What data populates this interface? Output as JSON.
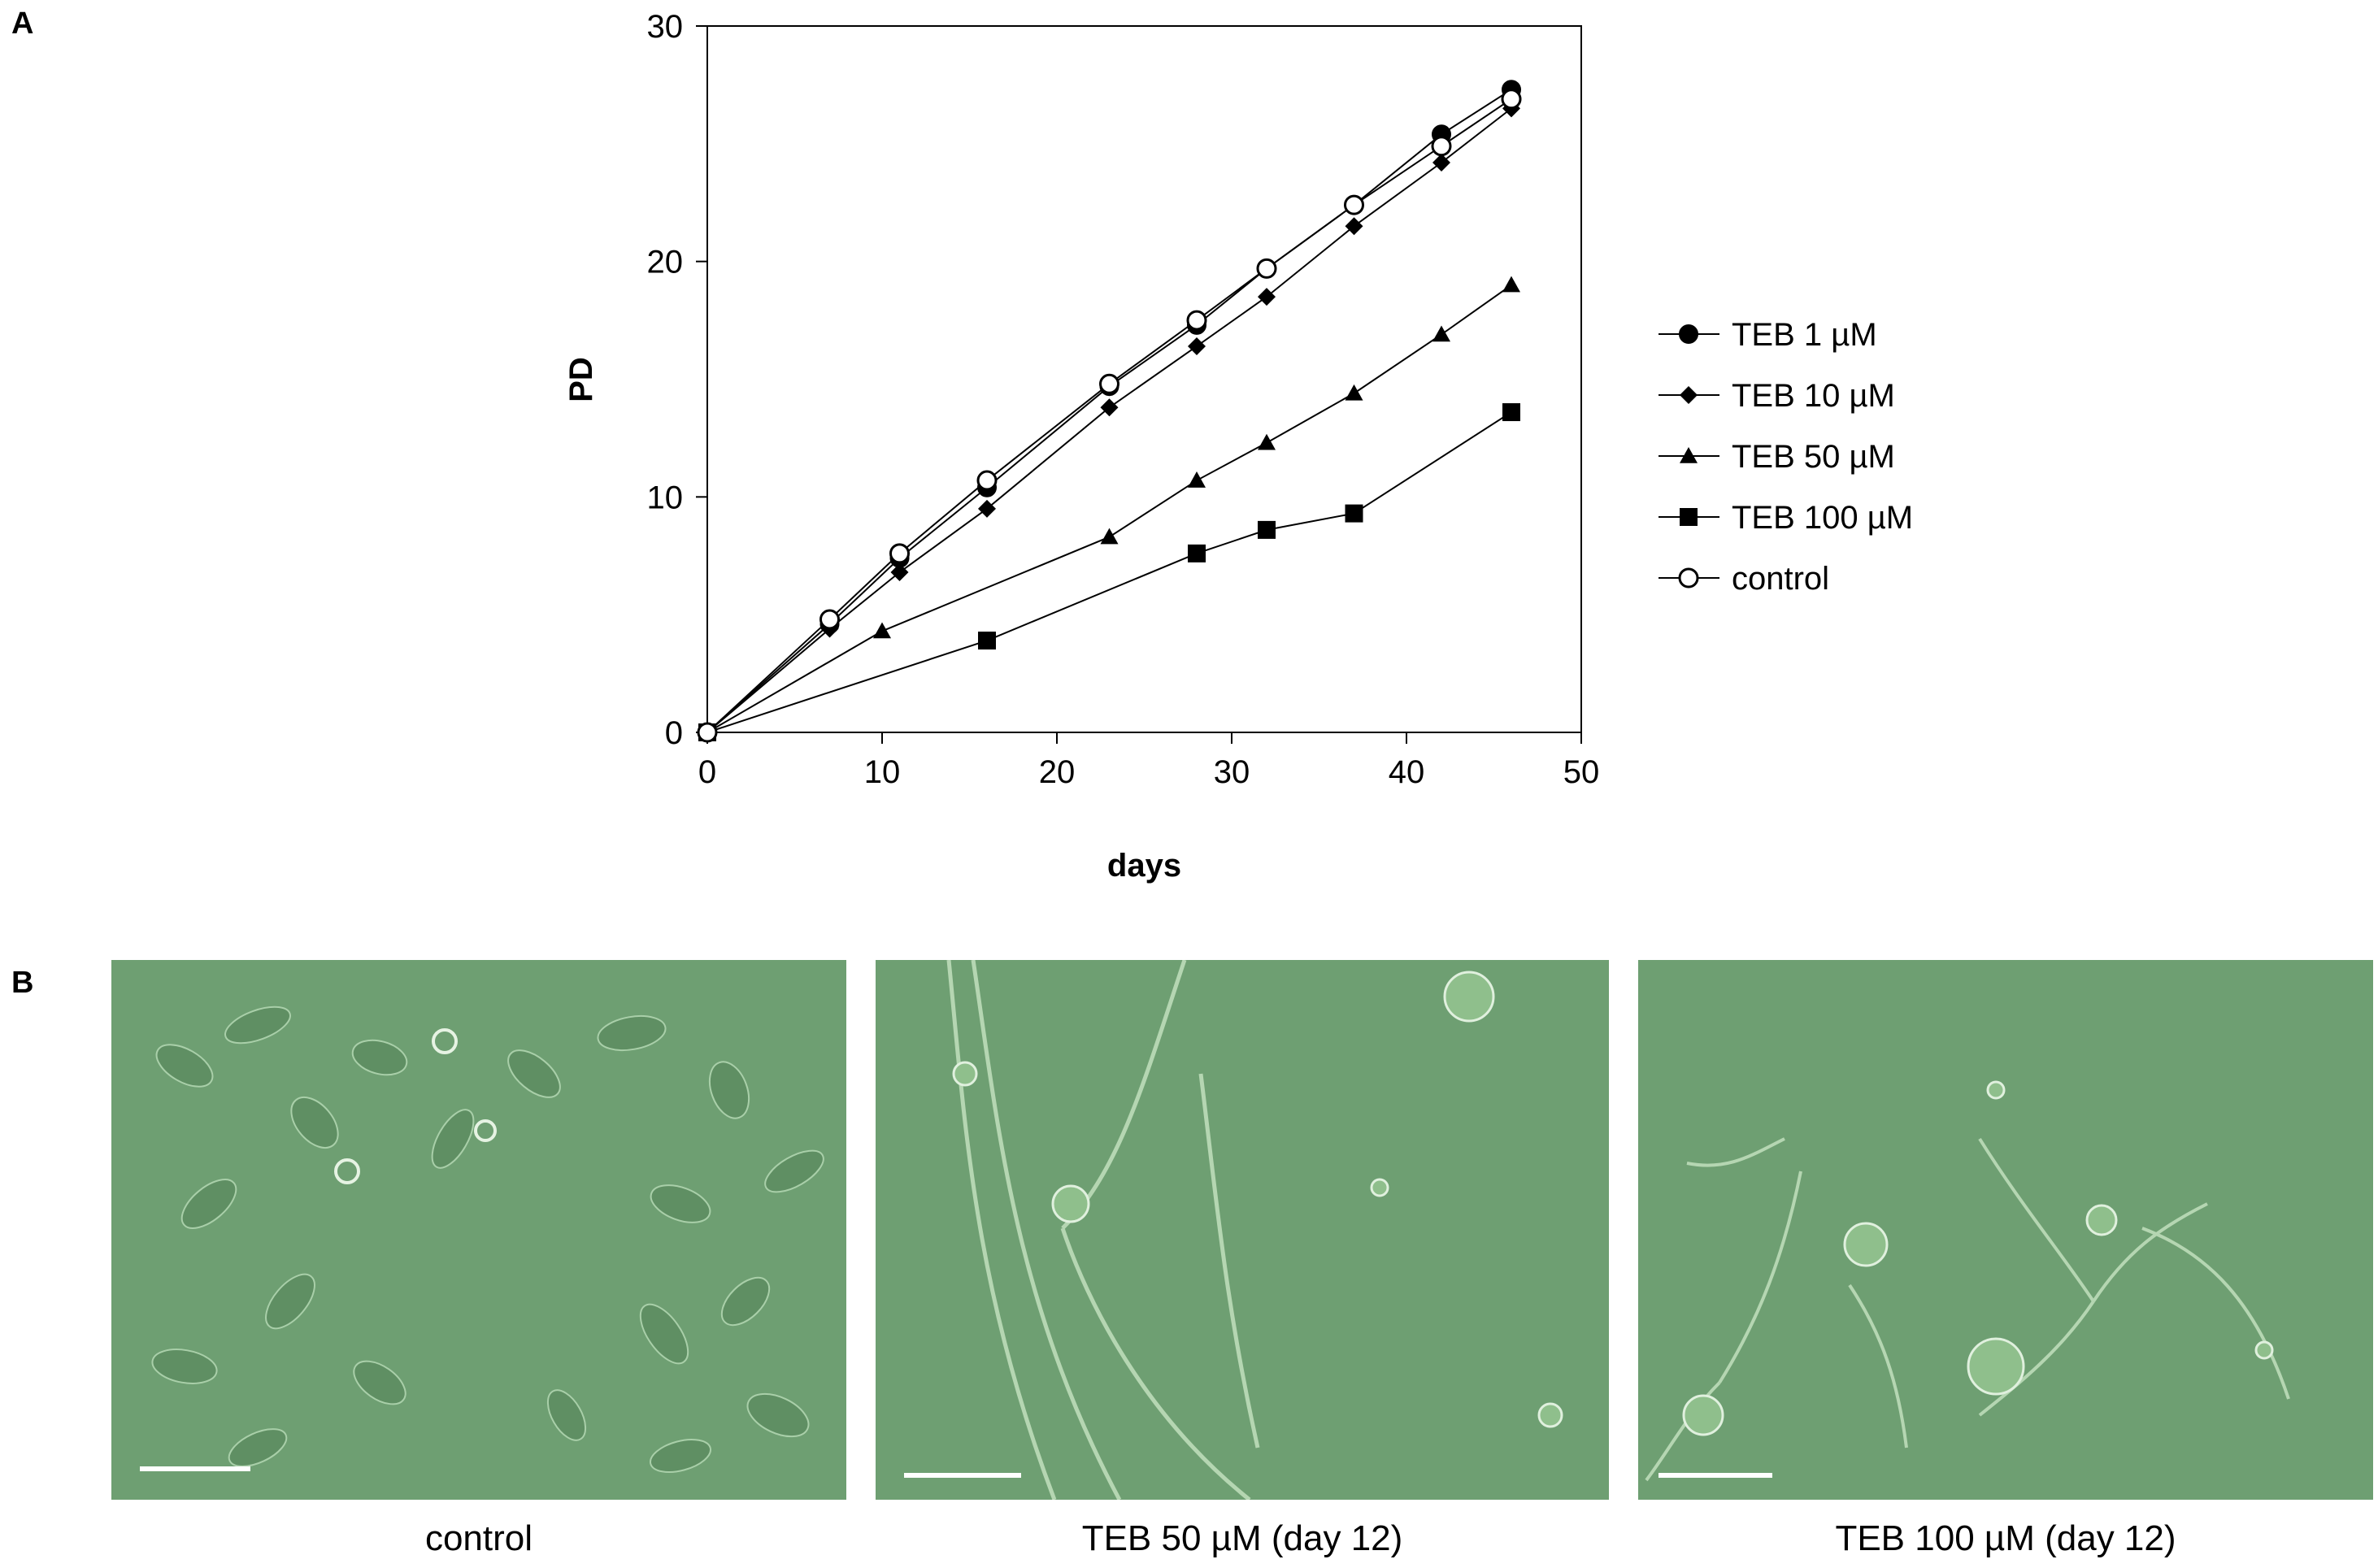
{
  "panels": {
    "a": "A",
    "b": "B"
  },
  "chart_data": {
    "type": "line",
    "xlabel": "days",
    "ylabel": "PD",
    "xlim": [
      0,
      50
    ],
    "ylim": [
      0,
      30
    ],
    "xticks": [
      0,
      10,
      20,
      30,
      40,
      50
    ],
    "yticks": [
      0,
      10,
      20,
      30
    ],
    "grid": false,
    "legend_position": "right",
    "series": [
      {
        "name": "TEB 1 µM",
        "marker": "circle-filled",
        "x": [
          0,
          7,
          11,
          16,
          23,
          28,
          32,
          37,
          42,
          46
        ],
        "y": [
          0,
          4.6,
          7.4,
          10.4,
          14.7,
          17.3,
          19.7,
          22.4,
          25.4,
          27.3
        ]
      },
      {
        "name": "TEB 10 µM",
        "marker": "diamond-filled",
        "x": [
          0,
          7,
          11,
          16,
          23,
          28,
          32,
          37,
          42,
          46
        ],
        "y": [
          0,
          4.4,
          6.8,
          9.5,
          13.8,
          16.4,
          18.5,
          21.5,
          24.2,
          26.5
        ]
      },
      {
        "name": "TEB 50 µM",
        "marker": "triangle-filled",
        "x": [
          0,
          10,
          23,
          28,
          32,
          37,
          42,
          46
        ],
        "y": [
          0,
          4.3,
          8.3,
          10.7,
          12.3,
          14.4,
          16.9,
          19.0
        ]
      },
      {
        "name": "TEB 100 µM",
        "marker": "square-filled",
        "x": [
          0,
          16,
          28,
          32,
          37,
          46
        ],
        "y": [
          0,
          3.9,
          7.6,
          8.6,
          9.3,
          13.6
        ]
      },
      {
        "name": "control",
        "marker": "circle-open",
        "x": [
          0,
          7,
          11,
          16,
          23,
          28,
          32,
          37,
          42,
          46
        ],
        "y": [
          0,
          4.8,
          7.6,
          10.7,
          14.8,
          17.5,
          19.7,
          22.4,
          24.9,
          26.9
        ]
      }
    ]
  },
  "micrographs": [
    {
      "caption": "control"
    },
    {
      "caption": "TEB 50 µM (day 12)"
    },
    {
      "caption": "TEB 100 µM (day 12)"
    }
  ],
  "colors": {
    "micrograph_bg": "#6e9f72",
    "line": "#000000",
    "scalebar": "#ffffff"
  }
}
